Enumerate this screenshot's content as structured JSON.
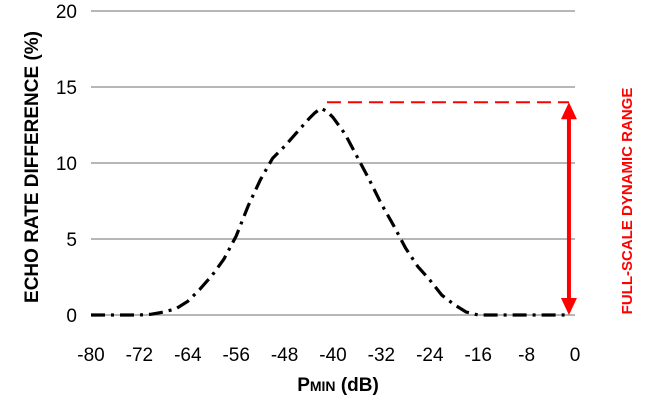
{
  "chart_data": {
    "type": "line",
    "title": "",
    "xlabel": "PMIN (dB)",
    "xlabel_parts": {
      "main": "P",
      "small": "MIN",
      "rest": " (dB)"
    },
    "ylabel": "ECHO RATE DIFFERENCE (%)",
    "xlim": [
      -80,
      0
    ],
    "ylim": [
      0,
      20
    ],
    "x_ticks": [
      -80,
      -72,
      -64,
      -56,
      -48,
      -40,
      -32,
      -24,
      -16,
      -8,
      0
    ],
    "y_ticks": [
      0,
      5,
      10,
      15,
      20
    ],
    "grid": "horizontal",
    "legend": "none",
    "series": [
      {
        "style": "dash-dot",
        "color": "#000000",
        "x": [
          -80,
          -76,
          -72,
          -70,
          -68,
          -66,
          -64,
          -62,
          -60,
          -58,
          -56,
          -54,
          -52,
          -50,
          -48,
          -46,
          -44,
          -43,
          -42,
          -41,
          -40,
          -38,
          -36,
          -34,
          -32,
          -30,
          -28,
          -26,
          -24,
          -22,
          -20,
          -18,
          -16,
          -14,
          -12,
          -10,
          -8,
          -6,
          -4,
          -2,
          -1
        ],
        "y": [
          0,
          0,
          0,
          0.05,
          0.2,
          0.4,
          0.9,
          1.7,
          2.6,
          3.7,
          5.2,
          7.2,
          8.9,
          10.3,
          11.1,
          12.0,
          12.9,
          13.3,
          13.6,
          13.4,
          13.0,
          11.9,
          10.4,
          8.9,
          7.3,
          5.9,
          4.4,
          3.2,
          2.3,
          1.3,
          0.7,
          0.2,
          0.0,
          0.0,
          0.0,
          0.0,
          0.0,
          0.0,
          0.0,
          0.0,
          0.0
        ]
      }
    ],
    "annotations": {
      "range_label": "FULL-SCALE DYNAMIC RANGE",
      "range_color": "#ff0000",
      "range_bottom_y": 0,
      "range_top_y": 14,
      "range_x": -1,
      "dashed_line_y": 14,
      "dashed_line_from_x": -41,
      "dashed_line_to_x": -1
    }
  }
}
